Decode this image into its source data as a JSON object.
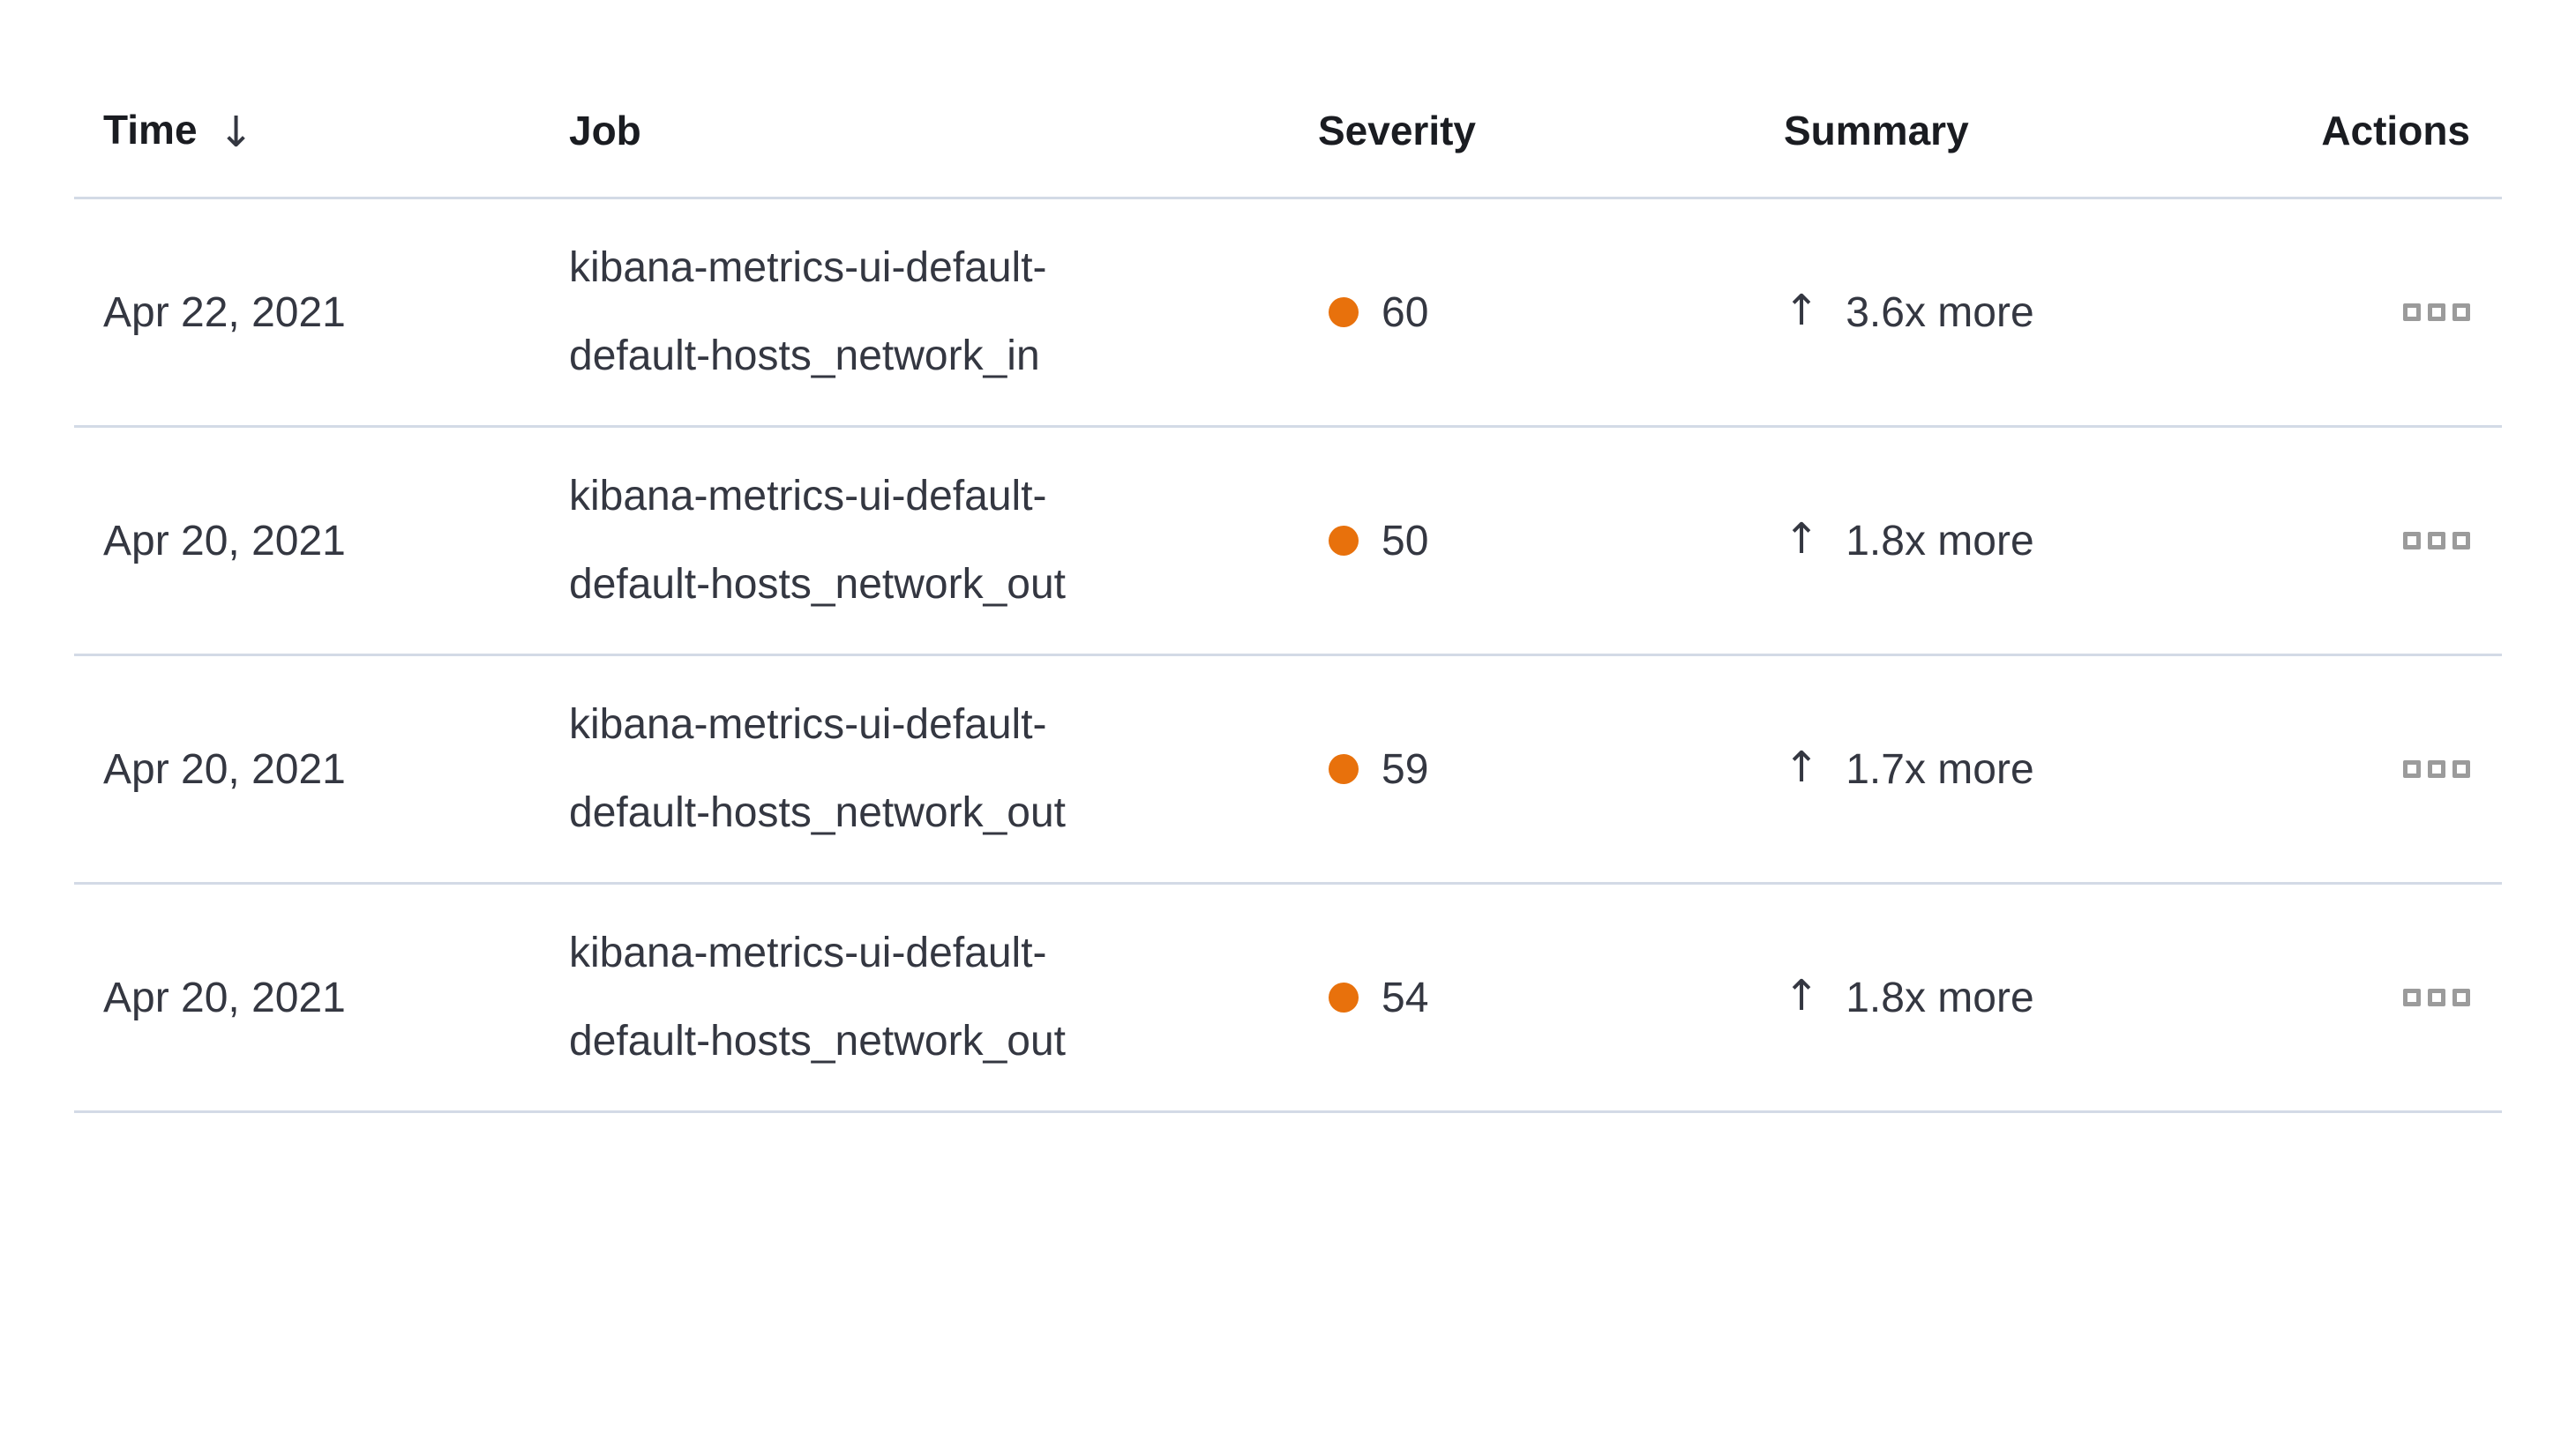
{
  "table": {
    "columns": {
      "time": "Time",
      "job": "Job",
      "severity": "Severity",
      "summary": "Summary",
      "actions": "Actions"
    },
    "sort": {
      "column": "Time",
      "direction": "descending",
      "icon": "↓"
    },
    "summary_arrow": "↑",
    "rows": [
      {
        "time": "Apr 22, 2021",
        "job": "kibana-metrics-ui-default-default-hosts_network_in",
        "job_lines": [
          "kibana-metrics-ui-default-",
          "default-hosts_network_in"
        ],
        "severity": "60",
        "summary": "3.6x more"
      },
      {
        "time": "Apr 20, 2021",
        "job": "kibana-metrics-ui-default-default-hosts_network_out",
        "job_lines": [
          "kibana-metrics-ui-default-",
          "default-hosts_network_out"
        ],
        "severity": "50",
        "summary": "1.8x more"
      },
      {
        "time": "Apr 20, 2021",
        "job": "kibana-metrics-ui-default-default-hosts_network_out",
        "job_lines": [
          "kibana-metrics-ui-default-",
          "default-hosts_network_out"
        ],
        "severity": "59",
        "summary": "1.7x more"
      },
      {
        "time": "Apr 20, 2021",
        "job": "kibana-metrics-ui-default-default-hosts_network_out",
        "job_lines": [
          "kibana-metrics-ui-default-",
          "default-hosts_network_out"
        ],
        "severity": "54",
        "summary": "1.8x more"
      }
    ],
    "colors": {
      "header_text": "#1a1c21",
      "body_text": "#343741",
      "divider": "#d3dae6",
      "severity_dot": "#e8710c",
      "actions_icon": "#9b9b9b"
    }
  }
}
